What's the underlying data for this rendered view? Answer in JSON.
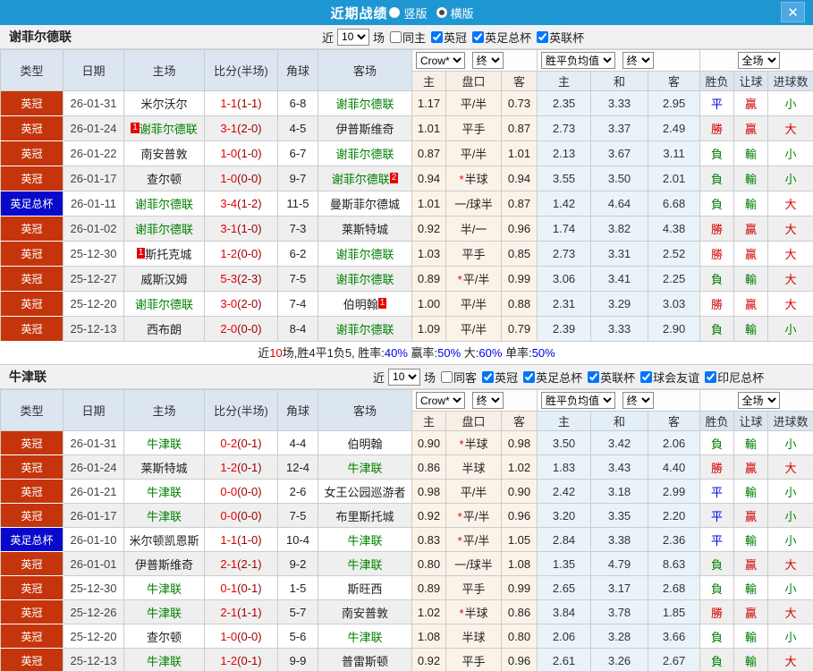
{
  "titlebar": {
    "title": "近期战绩",
    "layout_options": [
      {
        "label": "竖版",
        "selected": false
      },
      {
        "label": "横版",
        "selected": true
      }
    ],
    "close_icon": "✕"
  },
  "colors": {
    "titlebar_blue": "#1e96d2",
    "close_button_blue": "#4da7e0",
    "league_badge_red": "#c5350b",
    "cup_badge_blue": "#0909cc",
    "focus_team_green": "#008000",
    "score_red": "#e60000",
    "result_red": "#d40000",
    "result_blue": "#0000ee",
    "result_green": "#008000",
    "odds_col_bg": "#fbf3e8",
    "mean_col_bg": "#eaf3fa"
  },
  "header_labels": {
    "cols": [
      "类型",
      "日期",
      "主场",
      "比分(半场)",
      "角球",
      "客场"
    ],
    "odds_select": "Crow*",
    "odds_final_select": "终",
    "mean_select": "胜平负均值",
    "mean_final_select": "终",
    "scope_select": "全场",
    "odds_subcols": [
      "主",
      "盘口",
      "客"
    ],
    "mean_subcols": [
      "主",
      "和",
      "客"
    ],
    "result_subcols": [
      "胜负",
      "让球",
      "进球数"
    ]
  },
  "sections": [
    {
      "team": "谢菲尔德联",
      "filter": {
        "prefix": "近",
        "count": "10",
        "suffix": "场",
        "checkboxes": [
          {
            "label": "同主",
            "checked": false
          },
          {
            "label": "英冠",
            "checked": true
          },
          {
            "label": "英足总杯",
            "checked": true
          },
          {
            "label": "英联杯",
            "checked": true
          }
        ]
      },
      "rows": [
        {
          "league": "英冠",
          "league_type": "league",
          "date": "26-01-31",
          "home": "米尔沃尔",
          "home_green": false,
          "home_badge": "",
          "score": "1-1",
          "half": "(1-1)",
          "corners": "6-8",
          "away": "谢菲尔德联",
          "away_green": true,
          "away_badge": "",
          "odds_home": "1.17",
          "handicap": "平/半",
          "handicap_star": false,
          "odds_away": "0.73",
          "mean_home": "2.35",
          "mean_draw": "3.33",
          "mean_away": "2.95",
          "result": "平",
          "handicap_result": "贏",
          "goals_result": "小"
        },
        {
          "league": "英冠",
          "league_type": "league",
          "date": "26-01-24",
          "home": "谢菲尔德联",
          "home_green": true,
          "home_badge": "1",
          "score": "3-1",
          "half": "(2-0)",
          "corners": "4-5",
          "away": "伊普斯维奇",
          "away_green": false,
          "away_badge": "",
          "odds_home": "1.01",
          "handicap": "平手",
          "handicap_star": false,
          "odds_away": "0.87",
          "mean_home": "2.73",
          "mean_draw": "3.37",
          "mean_away": "2.49",
          "result": "勝",
          "handicap_result": "贏",
          "goals_result": "大"
        },
        {
          "league": "英冠",
          "league_type": "league",
          "date": "26-01-22",
          "home": "南安普敦",
          "home_green": false,
          "home_badge": "",
          "score": "1-0",
          "half": "(1-0)",
          "corners": "6-7",
          "away": "谢菲尔德联",
          "away_green": true,
          "away_badge": "",
          "odds_home": "0.87",
          "handicap": "平/半",
          "handicap_star": false,
          "odds_away": "1.01",
          "mean_home": "2.13",
          "mean_draw": "3.67",
          "mean_away": "3.11",
          "result": "負",
          "handicap_result": "輸",
          "goals_result": "小"
        },
        {
          "league": "英冠",
          "league_type": "league",
          "date": "26-01-17",
          "home": "查尔顿",
          "home_green": false,
          "home_badge": "",
          "score": "1-0",
          "half": "(0-0)",
          "corners": "9-7",
          "away": "谢菲尔德联",
          "away_green": true,
          "away_badge": "2",
          "odds_home": "0.94",
          "handicap": "半球",
          "handicap_star": true,
          "odds_away": "0.94",
          "mean_home": "3.55",
          "mean_draw": "3.50",
          "mean_away": "2.01",
          "result": "負",
          "handicap_result": "輸",
          "goals_result": "小"
        },
        {
          "league": "英足总杯",
          "league_type": "cup",
          "date": "26-01-11",
          "home": "谢菲尔德联",
          "home_green": true,
          "home_badge": "",
          "score": "3-4",
          "half": "(1-2)",
          "corners": "11-5",
          "away": "曼斯菲尔德城",
          "away_green": false,
          "away_badge": "",
          "odds_home": "1.01",
          "handicap": "一/球半",
          "handicap_star": false,
          "odds_away": "0.87",
          "mean_home": "1.42",
          "mean_draw": "4.64",
          "mean_away": "6.68",
          "result": "負",
          "handicap_result": "輸",
          "goals_result": "大"
        },
        {
          "league": "英冠",
          "league_type": "league",
          "date": "26-01-02",
          "home": "谢菲尔德联",
          "home_green": true,
          "home_badge": "",
          "score": "3-1",
          "half": "(1-0)",
          "corners": "7-3",
          "away": "莱斯特城",
          "away_green": false,
          "away_badge": "",
          "odds_home": "0.92",
          "handicap": "半/一",
          "handicap_star": false,
          "odds_away": "0.96",
          "mean_home": "1.74",
          "mean_draw": "3.82",
          "mean_away": "4.38",
          "result": "勝",
          "handicap_result": "贏",
          "goals_result": "大"
        },
        {
          "league": "英冠",
          "league_type": "league",
          "date": "25-12-30",
          "home": "斯托克城",
          "home_green": false,
          "home_badge": "1",
          "score": "1-2",
          "half": "(0-0)",
          "corners": "6-2",
          "away": "谢菲尔德联",
          "away_green": true,
          "away_badge": "",
          "odds_home": "1.03",
          "handicap": "平手",
          "handicap_star": false,
          "odds_away": "0.85",
          "mean_home": "2.73",
          "mean_draw": "3.31",
          "mean_away": "2.52",
          "result": "勝",
          "handicap_result": "贏",
          "goals_result": "大"
        },
        {
          "league": "英冠",
          "league_type": "league",
          "date": "25-12-27",
          "home": "威斯汉姆",
          "home_green": false,
          "home_badge": "",
          "score": "5-3",
          "half": "(2-3)",
          "corners": "7-5",
          "away": "谢菲尔德联",
          "away_green": true,
          "away_badge": "",
          "odds_home": "0.89",
          "handicap": "平/半",
          "handicap_star": true,
          "odds_away": "0.99",
          "mean_home": "3.06",
          "mean_draw": "3.41",
          "mean_away": "2.25",
          "result": "負",
          "handicap_result": "輸",
          "goals_result": "大"
        },
        {
          "league": "英冠",
          "league_type": "league",
          "date": "25-12-20",
          "home": "谢菲尔德联",
          "home_green": true,
          "home_badge": "",
          "score": "3-0",
          "half": "(2-0)",
          "corners": "7-4",
          "away": "伯明翰",
          "away_green": false,
          "away_badge": "1",
          "odds_home": "1.00",
          "handicap": "平/半",
          "handicap_star": false,
          "odds_away": "0.88",
          "mean_home": "2.31",
          "mean_draw": "3.29",
          "mean_away": "3.03",
          "result": "勝",
          "handicap_result": "贏",
          "goals_result": "大"
        },
        {
          "league": "英冠",
          "league_type": "league",
          "date": "25-12-13",
          "home": "西布朗",
          "home_green": false,
          "home_badge": "",
          "score": "2-0",
          "half": "(0-0)",
          "corners": "8-4",
          "away": "谢菲尔德联",
          "away_green": true,
          "away_badge": "",
          "odds_home": "1.09",
          "handicap": "平/半",
          "handicap_star": false,
          "odds_away": "0.79",
          "mean_home": "2.39",
          "mean_draw": "3.33",
          "mean_away": "2.90",
          "result": "負",
          "handicap_result": "輸",
          "goals_result": "小"
        }
      ],
      "summary": {
        "segments": [
          {
            "text": "近",
            "color": "default"
          },
          {
            "text": "10",
            "color": "red"
          },
          {
            "text": "场,胜4平1负5, 胜率:",
            "color": "default"
          },
          {
            "text": "40%",
            "color": "blue"
          },
          {
            "text": " 赢率:",
            "color": "default"
          },
          {
            "text": "50%",
            "color": "blue"
          },
          {
            "text": " 大:",
            "color": "default"
          },
          {
            "text": "60%",
            "color": "blue"
          },
          {
            "text": " 单率:",
            "color": "default"
          },
          {
            "text": "50%",
            "color": "blue"
          }
        ]
      }
    },
    {
      "team": "牛津联",
      "filter": {
        "prefix": "近",
        "count": "10",
        "suffix": "场",
        "checkboxes": [
          {
            "label": "同客",
            "checked": false
          },
          {
            "label": "英冠",
            "checked": true
          },
          {
            "label": "英足总杯",
            "checked": true
          },
          {
            "label": "英联杯",
            "checked": true
          },
          {
            "label": "球会友谊",
            "checked": true
          },
          {
            "label": "印尼总杯",
            "checked": true
          }
        ]
      },
      "rows": [
        {
          "league": "英冠",
          "league_type": "league",
          "date": "26-01-31",
          "home": "牛津联",
          "home_green": true,
          "home_badge": "",
          "score": "0-2",
          "half": "(0-1)",
          "corners": "4-4",
          "away": "伯明翰",
          "away_green": false,
          "away_badge": "",
          "odds_home": "0.90",
          "handicap": "半球",
          "handicap_star": true,
          "odds_away": "0.98",
          "mean_home": "3.50",
          "mean_draw": "3.42",
          "mean_away": "2.06",
          "result": "負",
          "handicap_result": "輸",
          "goals_result": "小"
        },
        {
          "league": "英冠",
          "league_type": "league",
          "date": "26-01-24",
          "home": "莱斯特城",
          "home_green": false,
          "home_badge": "",
          "score": "1-2",
          "half": "(0-1)",
          "corners": "12-4",
          "away": "牛津联",
          "away_green": true,
          "away_badge": "",
          "odds_home": "0.86",
          "handicap": "半球",
          "handicap_star": false,
          "odds_away": "1.02",
          "mean_home": "1.83",
          "mean_draw": "3.43",
          "mean_away": "4.40",
          "result": "勝",
          "handicap_result": "贏",
          "goals_result": "大"
        },
        {
          "league": "英冠",
          "league_type": "league",
          "date": "26-01-21",
          "home": "牛津联",
          "home_green": true,
          "home_badge": "",
          "score": "0-0",
          "half": "(0-0)",
          "corners": "2-6",
          "away": "女王公园巡游者",
          "away_green": false,
          "away_badge": "",
          "odds_home": "0.98",
          "handicap": "平/半",
          "handicap_star": false,
          "odds_away": "0.90",
          "mean_home": "2.42",
          "mean_draw": "3.18",
          "mean_away": "2.99",
          "result": "平",
          "handicap_result": "輸",
          "goals_result": "小"
        },
        {
          "league": "英冠",
          "league_type": "league",
          "date": "26-01-17",
          "home": "牛津联",
          "home_green": true,
          "home_badge": "",
          "score": "0-0",
          "half": "(0-0)",
          "corners": "7-5",
          "away": "布里斯托城",
          "away_green": false,
          "away_badge": "",
          "odds_home": "0.92",
          "handicap": "平/半",
          "handicap_star": true,
          "odds_away": "0.96",
          "mean_home": "3.20",
          "mean_draw": "3.35",
          "mean_away": "2.20",
          "result": "平",
          "handicap_result": "贏",
          "goals_result": "小"
        },
        {
          "league": "英足总杯",
          "league_type": "cup",
          "date": "26-01-10",
          "home": "米尔顿凯恩斯",
          "home_green": false,
          "home_badge": "",
          "score": "1-1",
          "half": "(1-0)",
          "corners": "10-4",
          "away": "牛津联",
          "away_green": true,
          "away_badge": "",
          "odds_home": "0.83",
          "handicap": "平/半",
          "handicap_star": true,
          "odds_away": "1.05",
          "mean_home": "2.84",
          "mean_draw": "3.38",
          "mean_away": "2.36",
          "result": "平",
          "handicap_result": "輸",
          "goals_result": "小"
        },
        {
          "league": "英冠",
          "league_type": "league",
          "date": "26-01-01",
          "home": "伊普斯维奇",
          "home_green": false,
          "home_badge": "",
          "score": "2-1",
          "half": "(2-1)",
          "corners": "9-2",
          "away": "牛津联",
          "away_green": true,
          "away_badge": "",
          "odds_home": "0.80",
          "handicap": "一/球半",
          "handicap_star": false,
          "odds_away": "1.08",
          "mean_home": "1.35",
          "mean_draw": "4.79",
          "mean_away": "8.63",
          "result": "負",
          "handicap_result": "贏",
          "goals_result": "大"
        },
        {
          "league": "英冠",
          "league_type": "league",
          "date": "25-12-30",
          "home": "牛津联",
          "home_green": true,
          "home_badge": "",
          "score": "0-1",
          "half": "(0-1)",
          "corners": "1-5",
          "away": "斯旺西",
          "away_green": false,
          "away_badge": "",
          "odds_home": "0.89",
          "handicap": "平手",
          "handicap_star": false,
          "odds_away": "0.99",
          "mean_home": "2.65",
          "mean_draw": "3.17",
          "mean_away": "2.68",
          "result": "負",
          "handicap_result": "輸",
          "goals_result": "小"
        },
        {
          "league": "英冠",
          "league_type": "league",
          "date": "25-12-26",
          "home": "牛津联",
          "home_green": true,
          "home_badge": "",
          "score": "2-1",
          "half": "(1-1)",
          "corners": "5-7",
          "away": "南安普敦",
          "away_green": false,
          "away_badge": "",
          "odds_home": "1.02",
          "handicap": "半球",
          "handicap_star": true,
          "odds_away": "0.86",
          "mean_home": "3.84",
          "mean_draw": "3.78",
          "mean_away": "1.85",
          "result": "勝",
          "handicap_result": "贏",
          "goals_result": "大"
        },
        {
          "league": "英冠",
          "league_type": "league",
          "date": "25-12-20",
          "home": "查尔顿",
          "home_green": false,
          "home_badge": "",
          "score": "1-0",
          "half": "(0-0)",
          "corners": "5-6",
          "away": "牛津联",
          "away_green": true,
          "away_badge": "",
          "odds_home": "1.08",
          "handicap": "半球",
          "handicap_star": false,
          "odds_away": "0.80",
          "mean_home": "2.06",
          "mean_draw": "3.28",
          "mean_away": "3.66",
          "result": "負",
          "handicap_result": "輸",
          "goals_result": "小"
        },
        {
          "league": "英冠",
          "league_type": "league",
          "date": "25-12-13",
          "home": "牛津联",
          "home_green": true,
          "home_badge": "",
          "score": "1-2",
          "half": "(0-1)",
          "corners": "9-9",
          "away": "普雷斯顿",
          "away_green": false,
          "away_badge": "",
          "odds_home": "0.92",
          "handicap": "平手",
          "handicap_star": false,
          "odds_away": "0.96",
          "mean_home": "2.61",
          "mean_draw": "3.26",
          "mean_away": "2.67",
          "result": "負",
          "handicap_result": "輸",
          "goals_result": "大"
        }
      ],
      "summary": null
    }
  ]
}
